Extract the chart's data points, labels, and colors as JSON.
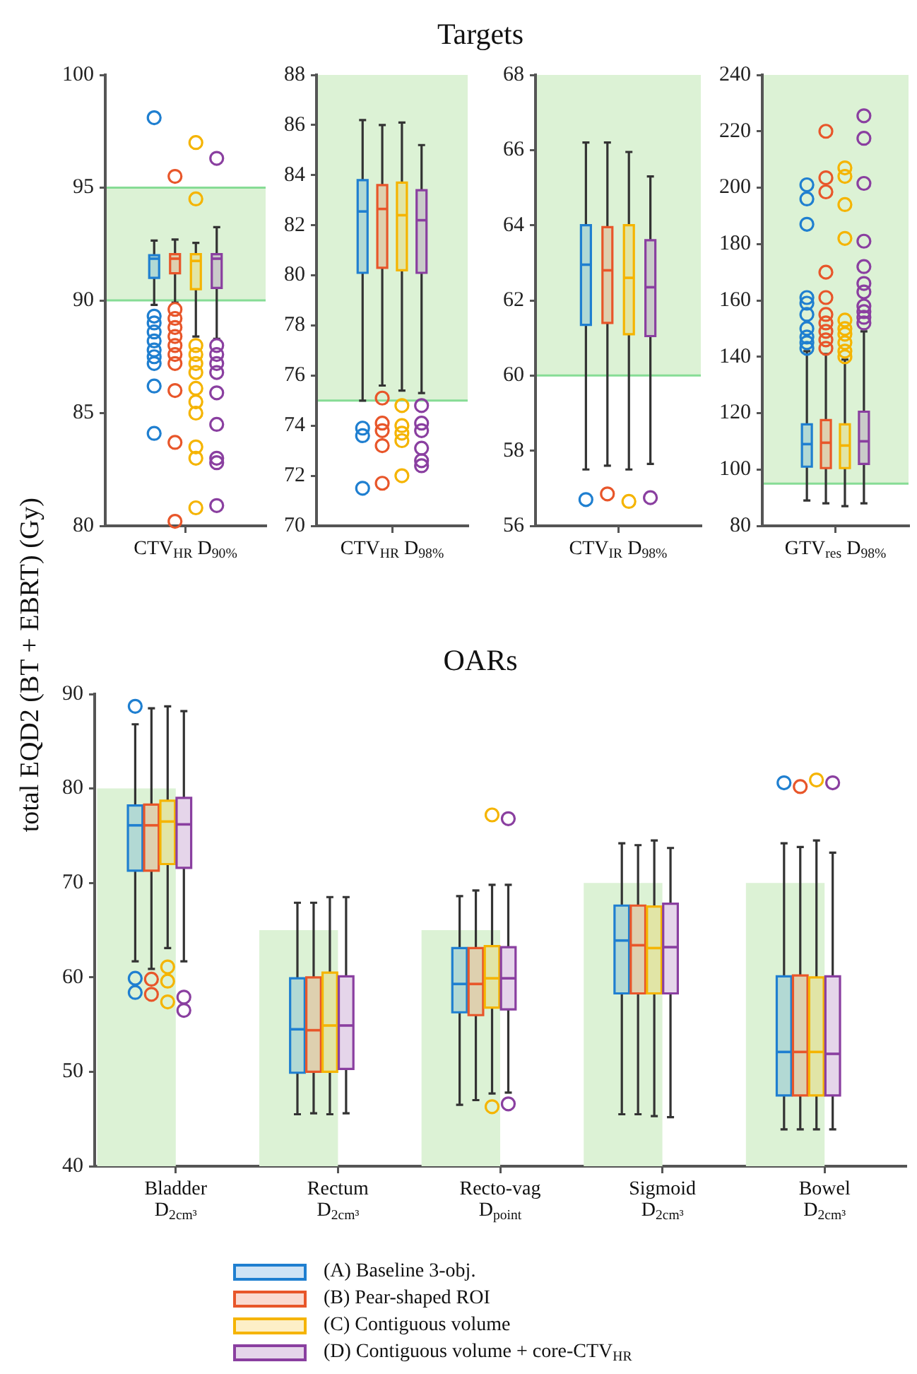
{
  "chart_data": [
    {
      "type": "box",
      "annotations": [
        "Targets"
      ],
      "categories": [
        "CTV$_{HR}$ D$_{90%}$"
      ],
      "ylim": [
        80,
        100
      ],
      "yticks": [
        80,
        85,
        90,
        95,
        100
      ],
      "bands": [
        {
          "axis": "y",
          "from": 90,
          "to": 95,
          "color": "#dcf2d5"
        }
      ],
      "ref_lines": [
        {
          "axis": "y",
          "value": 90,
          "color": "#86dc95"
        },
        {
          "axis": "y",
          "value": 95,
          "color": "#86dc95"
        }
      ],
      "series": [
        {
          "color": "#1f7fd0",
          "boxes": [
            {
              "low": 89.8,
              "q1": 91.0,
              "median": 91.85,
              "q3": 92.0,
              "high": 92.65,
              "outliers": [
                98.1,
                89.3,
                89.0,
                88.6,
                88.2,
                87.8,
                87.5,
                87.2,
                86.2,
                84.1
              ]
            }
          ]
        },
        {
          "color": "#e8562a",
          "boxes": [
            {
              "low": 89.9,
              "q1": 91.2,
              "median": 91.85,
              "q3": 92.05,
              "high": 92.7,
              "outliers": [
                95.5,
                89.6,
                89.2,
                88.8,
                88.4,
                88.0,
                87.6,
                87.2,
                86.0,
                83.7,
                80.2
              ]
            }
          ]
        },
        {
          "color": "#f5b400",
          "boxes": [
            {
              "low": 88.4,
              "q1": 90.5,
              "median": 91.75,
              "q3": 92.05,
              "high": 92.55,
              "outliers": [
                97.0,
                94.5,
                88.0,
                87.6,
                87.2,
                86.8,
                86.1,
                85.5,
                85.0,
                83.5,
                83.0,
                80.8
              ]
            }
          ]
        },
        {
          "color": "#8a3fa0",
          "boxes": [
            {
              "low": 88.3,
              "q1": 90.55,
              "median": 91.85,
              "q3": 92.05,
              "high": 93.25,
              "outliers": [
                96.3,
                88.0,
                87.6,
                87.2,
                86.8,
                85.9,
                84.5,
                83.0,
                82.8,
                80.9
              ]
            }
          ]
        }
      ]
    },
    {
      "type": "box",
      "categories": [
        "CTV$_{HR}$ D$_{98%}$"
      ],
      "ylim": [
        70,
        88
      ],
      "yticks": [
        70,
        72,
        74,
        76,
        78,
        80,
        82,
        84,
        86,
        88
      ],
      "bands": [
        {
          "axis": "y",
          "from": 75,
          "to": 88,
          "color": "#dcf2d5"
        }
      ],
      "ref_lines": [
        {
          "axis": "y",
          "value": 75,
          "color": "#86dc95"
        }
      ],
      "series": [
        {
          "color": "#1f7fd0",
          "boxes": [
            {
              "low": 75.0,
              "q1": 80.1,
              "median": 82.55,
              "q3": 83.8,
              "high": 86.2,
              "outliers": [
                73.9,
                73.6,
                71.5
              ]
            }
          ]
        },
        {
          "color": "#e8562a",
          "boxes": [
            {
              "low": 75.6,
              "q1": 80.3,
              "median": 82.65,
              "q3": 83.6,
              "high": 86.0,
              "outliers": [
                75.1,
                74.1,
                73.8,
                73.2,
                71.7
              ]
            }
          ]
        },
        {
          "color": "#f5b400",
          "boxes": [
            {
              "low": 75.4,
              "q1": 80.2,
              "median": 82.4,
              "q3": 83.7,
              "high": 86.1,
              "outliers": [
                74.8,
                74.0,
                73.7,
                73.4,
                72.0
              ]
            }
          ]
        },
        {
          "color": "#8a3fa0",
          "boxes": [
            {
              "low": 75.3,
              "q1": 80.1,
              "median": 82.2,
              "q3": 83.4,
              "high": 85.2,
              "outliers": [
                74.8,
                74.1,
                73.8,
                73.1,
                72.6,
                72.4
              ]
            }
          ]
        }
      ]
    },
    {
      "type": "box",
      "categories": [
        "CTV$_{IR}$ D$_{98%}$"
      ],
      "ylim": [
        56,
        68
      ],
      "yticks": [
        56,
        58,
        60,
        62,
        64,
        66,
        68
      ],
      "bands": [
        {
          "axis": "y",
          "from": 60,
          "to": 68,
          "color": "#dcf2d5"
        }
      ],
      "ref_lines": [
        {
          "axis": "y",
          "value": 60,
          "color": "#86dc95"
        }
      ],
      "series": [
        {
          "color": "#1f7fd0",
          "boxes": [
            {
              "low": 57.5,
              "q1": 61.35,
              "median": 62.95,
              "q3": 64.0,
              "high": 66.2,
              "outliers": [
                56.7
              ]
            }
          ]
        },
        {
          "color": "#e8562a",
          "boxes": [
            {
              "low": 57.6,
              "q1": 61.4,
              "median": 62.8,
              "q3": 63.95,
              "high": 66.2,
              "outliers": [
                56.85
              ]
            }
          ]
        },
        {
          "color": "#f5b400",
          "boxes": [
            {
              "low": 57.5,
              "q1": 61.1,
              "median": 62.6,
              "q3": 64.0,
              "high": 65.95,
              "outliers": [
                56.65
              ]
            }
          ]
        },
        {
          "color": "#8a3fa0",
          "boxes": [
            {
              "low": 57.65,
              "q1": 61.05,
              "median": 62.35,
              "q3": 63.6,
              "high": 65.3,
              "outliers": [
                56.75
              ]
            }
          ]
        }
      ]
    },
    {
      "type": "box",
      "categories": [
        "GTV$_{res}$ D$_{98%}$"
      ],
      "ylim": [
        80,
        240
      ],
      "yticks": [
        80,
        100,
        120,
        140,
        160,
        180,
        200,
        220,
        240
      ],
      "bands": [
        {
          "axis": "y",
          "from": 95,
          "to": 240,
          "color": "#dcf2d5"
        }
      ],
      "ref_lines": [
        {
          "axis": "y",
          "value": 95,
          "color": "#86dc95"
        }
      ],
      "series": [
        {
          "color": "#1f7fd0",
          "boxes": [
            {
              "low": 89,
              "q1": 101,
              "median": 109,
              "q3": 116,
              "high": 142,
              "outliers": [
                201,
                196,
                187,
                161,
                159,
                155,
                150,
                147,
                145,
                143
              ]
            }
          ]
        },
        {
          "color": "#e8562a",
          "boxes": [
            {
              "low": 88,
              "q1": 100.5,
              "median": 109.5,
              "q3": 117.5,
              "high": 141,
              "outliers": [
                220,
                203.5,
                198.5,
                170,
                161,
                155,
                152,
                149,
                146,
                143
              ]
            }
          ]
        },
        {
          "color": "#f5b400",
          "boxes": [
            {
              "low": 87,
              "q1": 100.5,
              "median": 108.5,
              "q3": 116,
              "high": 139,
              "outliers": [
                207,
                204,
                194,
                182,
                153,
                150,
                148,
                145,
                142,
                140
              ]
            }
          ]
        },
        {
          "color": "#8a3fa0",
          "boxes": [
            {
              "low": 88,
              "q1": 102,
              "median": 110,
              "q3": 120.5,
              "high": 149,
              "outliers": [
                225.5,
                217.5,
                201.5,
                181,
                172,
                166,
                163,
                158,
                156,
                154,
                152
              ]
            }
          ]
        }
      ]
    },
    {
      "type": "box",
      "title": "OARs",
      "ylabel": "total EQD2 (BT + EBRT) (Gy)",
      "legend": "bottom",
      "categories": [
        "Bladder\nD$_{2cm³}$",
        "Rectum\nD$_{2cm³}$",
        "Recto-vag\nD$_{point}$",
        "Sigmoid\nD$_{2cm³}$",
        "Bowel\nD$_{2cm³}$"
      ],
      "ylim": [
        40,
        90
      ],
      "yticks": [
        40,
        50,
        60,
        70,
        80,
        90
      ],
      "series": [
        {
          "type": "bar",
          "color": "#dcf2d5",
          "values": [
            80,
            65,
            65,
            70,
            70
          ]
        },
        {
          "name": "(A) Baseline 3-obj.",
          "color": "#1f7fd0",
          "boxes": [
            {
              "low": 61.7,
              "q1": 71.3,
              "median": 76.1,
              "q3": 78.2,
              "high": 86.8,
              "outliers": [
                88.7,
                59.9,
                58.4
              ]
            },
            {
              "low": 45.5,
              "q1": 49.9,
              "median": 54.5,
              "q3": 59.9,
              "high": 67.9
            },
            {
              "low": 46.5,
              "q1": 56.3,
              "median": 59.3,
              "q3": 63.1,
              "high": 68.6
            },
            {
              "low": 45.5,
              "q1": 58.3,
              "median": 63.9,
              "q3": 67.6,
              "high": 74.2
            },
            {
              "low": 43.9,
              "q1": 47.5,
              "median": 52.1,
              "q3": 60.1,
              "high": 74.2,
              "outliers": [
                80.6
              ]
            }
          ]
        },
        {
          "name": "(B) Pear-shaped ROI",
          "color": "#e8562a",
          "boxes": [
            {
              "low": 60.9,
              "q1": 71.3,
              "median": 76.1,
              "q3": 78.3,
              "high": 88.5,
              "outliers": [
                59.8,
                58.2
              ]
            },
            {
              "low": 45.6,
              "q1": 50.0,
              "median": 54.4,
              "q3": 60.0,
              "high": 67.9
            },
            {
              "low": 47.0,
              "q1": 56.0,
              "median": 59.3,
              "q3": 63.1,
              "high": 69.2
            },
            {
              "low": 45.5,
              "q1": 58.3,
              "median": 63.4,
              "q3": 67.6,
              "high": 74.0
            },
            {
              "low": 43.9,
              "q1": 47.5,
              "median": 52.1,
              "q3": 60.2,
              "high": 73.8,
              "outliers": [
                80.2
              ]
            }
          ]
        },
        {
          "name": "(C) Contiguous volume",
          "color": "#f5b400",
          "boxes": [
            {
              "low": 63.1,
              "q1": 72.0,
              "median": 76.5,
              "q3": 78.7,
              "high": 88.7,
              "outliers": [
                61.1,
                59.6,
                57.4
              ]
            },
            {
              "low": 45.5,
              "q1": 50.0,
              "median": 54.9,
              "q3": 60.5,
              "high": 68.5
            },
            {
              "low": 47.7,
              "q1": 56.8,
              "median": 59.9,
              "q3": 63.3,
              "high": 69.8,
              "outliers": [
                77.2,
                46.3
              ]
            },
            {
              "low": 45.3,
              "q1": 58.3,
              "median": 63.1,
              "q3": 67.5,
              "high": 74.5
            },
            {
              "low": 43.9,
              "q1": 47.5,
              "median": 52.1,
              "q3": 60.0,
              "high": 74.5,
              "outliers": [
                80.9
              ]
            }
          ]
        },
        {
          "name": "(D) Contiguous volume + core-CTV$_{HR}$",
          "color": "#8a3fa0",
          "boxes": [
            {
              "low": 61.7,
              "q1": 71.6,
              "median": 76.2,
              "q3": 79.0,
              "high": 88.2,
              "outliers": [
                57.9,
                56.5
              ]
            },
            {
              "low": 45.6,
              "q1": 50.3,
              "median": 54.9,
              "q3": 60.1,
              "high": 68.5
            },
            {
              "low": 47.8,
              "q1": 56.6,
              "median": 59.9,
              "q3": 63.2,
              "high": 69.8,
              "outliers": [
                76.8,
                46.6
              ]
            },
            {
              "low": 45.2,
              "q1": 58.3,
              "median": 63.2,
              "q3": 67.8,
              "high": 73.7
            },
            {
              "low": 43.9,
              "q1": 47.5,
              "median": 51.9,
              "q3": 60.1,
              "high": 73.2,
              "outliers": [
                80.6
              ]
            }
          ]
        }
      ]
    }
  ]
}
